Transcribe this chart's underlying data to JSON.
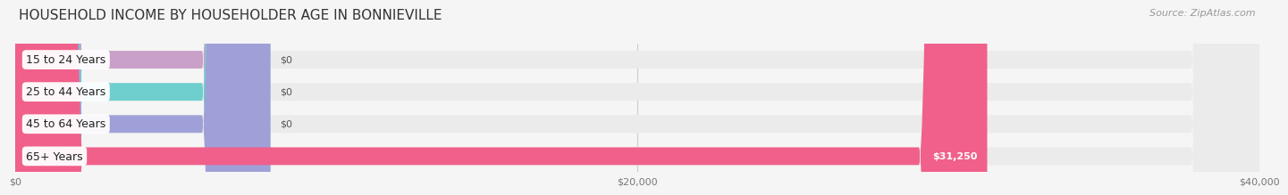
{
  "title": "HOUSEHOLD INCOME BY HOUSEHOLDER AGE IN BONNIEVILLE",
  "source": "Source: ZipAtlas.com",
  "categories": [
    "15 to 24 Years",
    "25 to 44 Years",
    "45 to 64 Years",
    "65+ Years"
  ],
  "values": [
    0,
    0,
    0,
    31250
  ],
  "bar_colors": [
    "#c9a0c8",
    "#6ecfce",
    "#a0a0d8",
    "#f0608a"
  ],
  "xlim": [
    0,
    40000
  ],
  "xticks": [
    0,
    20000,
    40000
  ],
  "xtick_labels": [
    "$0",
    "$20,000",
    "$40,000"
  ],
  "background_color": "#f5f5f5",
  "bar_bg_color": "#ebebeb",
  "title_fontsize": 11,
  "source_fontsize": 8,
  "label_fontsize": 9,
  "value_fontsize": 8,
  "value_color_inside": "#ffffff",
  "value_color_outside": "#555555"
}
